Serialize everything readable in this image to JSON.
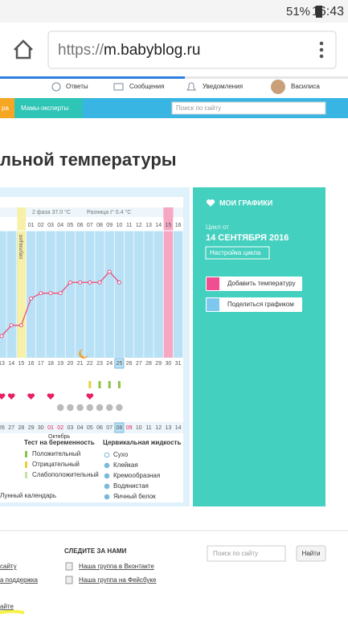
{
  "status_bar": {
    "battery": "51%",
    "time": "16:43"
  },
  "browser": {
    "scheme": "https://",
    "host": "m.babyblog.ru"
  },
  "nav": {
    "items": [
      "Ответы",
      "Сообщения",
      "Уведомления"
    ],
    "user": "Василиса"
  },
  "tabs": {
    "items": [
      "ра",
      "Мамы-эксперты"
    ],
    "search_placeholder": "Поиск по сайту"
  },
  "heading": "льной температуры",
  "chart": {
    "phase": "2 фаза 37.0 °C",
    "difference": "Разница t° 0.4 °C",
    "ovulation": "овуляция",
    "cycle_days": [
      "01",
      "02",
      "03",
      "04",
      "05",
      "06",
      "07",
      "08",
      "09",
      "10",
      "11",
      "12",
      "13",
      "14",
      "15",
      "16"
    ],
    "dates": [
      "13",
      "14",
      "15",
      "16",
      "17",
      "18",
      "19",
      "20",
      "21",
      "22",
      "23",
      "24",
      "25",
      "26",
      "27",
      "28",
      "29",
      "30",
      "31"
    ],
    "calendar_dates": [
      "26",
      "27",
      "28",
      "29",
      "30",
      "01",
      "02",
      "03",
      "04",
      "05",
      "06",
      "07",
      "08",
      "09",
      "10",
      "11",
      "12",
      "13",
      "14"
    ],
    "month": "Октябрь",
    "temperature": [
      36.5,
      36.6,
      36.6,
      36.85,
      36.9,
      36.9,
      36.9,
      37.0,
      37.0,
      37.0,
      37.0,
      37.1,
      37.0
    ],
    "legend": {
      "pregnancy_test": {
        "title": "Тест на беременность",
        "items": [
          "Положительный",
          "Отрицательный",
          "Слабоположительный"
        ]
      },
      "cervical": {
        "title": "Цервикальная жидкость",
        "items": [
          "Сухо",
          "Клейкая",
          "Кремообразная",
          "Водянистая",
          "Яичный белок"
        ]
      },
      "lunar": "Лунный календарь"
    }
  },
  "panel": {
    "title": "МОИ ГРАФИКИ",
    "cycle_label": "Цикл от",
    "cycle_date": "14 СЕНТЯБРЯ 2016",
    "settings": "Настройка цикла",
    "actions": [
      "Добавить температуру",
      "Поделиться графиком"
    ]
  },
  "footer": {
    "follow": "СЛЕДИТЕ ЗА НАМИ",
    "links": [
      "Наша группа в Вконтакте",
      "Наша группа на Фейсбуке"
    ],
    "left": [
      "сайту",
      "а поддержка",
      "айте"
    ],
    "search_placeholder": "Поиск по сайту",
    "search_button": "Найти"
  }
}
